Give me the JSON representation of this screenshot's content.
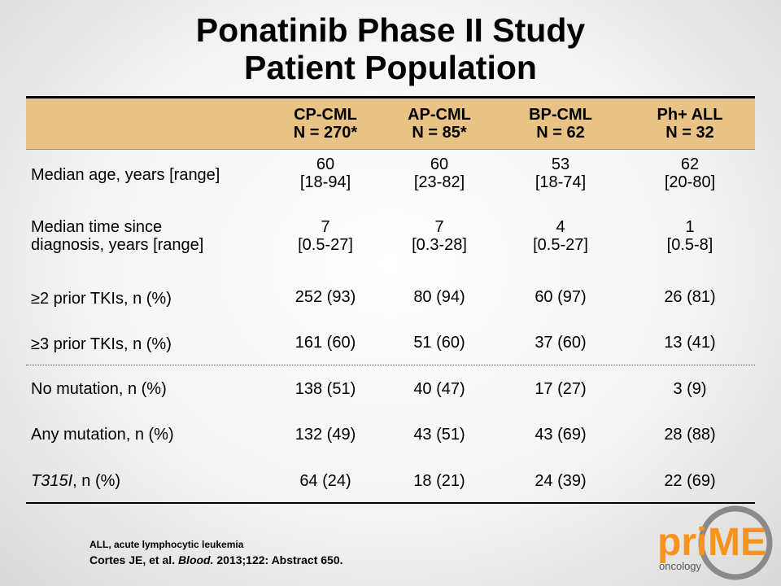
{
  "title": {
    "line1": "Ponatinib Phase II Study",
    "line2": "Patient  Population"
  },
  "columns": [
    {
      "name": "CP-CML",
      "n": "N = 270*"
    },
    {
      "name": "AP-CML",
      "n": "N = 85*"
    },
    {
      "name": "BP-CML",
      "n": "N = 62"
    },
    {
      "name": "Ph+ ALL",
      "n": "N = 32"
    }
  ],
  "rows": [
    {
      "label1": "Median age, years [range]",
      "label2": "",
      "values": [
        [
          "60",
          "[18-94]"
        ],
        [
          "60",
          "[23-82]"
        ],
        [
          "53",
          "[18-74]"
        ],
        [
          "62",
          "[20-80]"
        ]
      ]
    },
    {
      "label1": "Median time since",
      "label2": "diagnosis, years [range]",
      "values": [
        [
          "7",
          "[0.5-27]"
        ],
        [
          "7",
          "[0.3-28]"
        ],
        [
          "4",
          "[0.5-27]"
        ],
        [
          "1",
          "[0.5-8]"
        ]
      ]
    },
    {
      "label1": "≥2 prior TKIs, n (%)",
      "label2": "",
      "values": [
        [
          "252 (93)",
          ""
        ],
        [
          "80 (94)",
          ""
        ],
        [
          "60 (97)",
          ""
        ],
        [
          "26 (81)",
          ""
        ]
      ]
    },
    {
      "label1": "≥3 prior TKIs, n (%)",
      "label2": "",
      "values": [
        [
          "161 (60)",
          ""
        ],
        [
          "51 (60)",
          ""
        ],
        [
          "37 (60)",
          ""
        ],
        [
          "13 (41)",
          ""
        ]
      ]
    },
    {
      "label1": "No mutation, n (%)",
      "label2": "",
      "values": [
        [
          "138 (51)",
          ""
        ],
        [
          "40 (47)",
          ""
        ],
        [
          "17 (27)",
          ""
        ],
        [
          "3 (9)",
          ""
        ]
      ]
    },
    {
      "label1": "Any mutation, n (%)",
      "label2": "",
      "values": [
        [
          "132 (49)",
          ""
        ],
        [
          "43 (51)",
          ""
        ],
        [
          "43 (69)",
          ""
        ],
        [
          "28 (88)",
          ""
        ]
      ]
    },
    {
      "label1_italic": "T315I",
      "label1": ", n (%)",
      "label2": "",
      "values": [
        [
          "64 (24)",
          ""
        ],
        [
          "18 (21)",
          ""
        ],
        [
          "24 (39)",
          ""
        ],
        [
          "22 (69)",
          ""
        ]
      ]
    }
  ],
  "footnotes": {
    "abbrev": "ALL, acute lymphocytic leukemia",
    "cite_authors": "Cortes JE, et al. ",
    "cite_journal": "Blood.",
    "cite_rest": " 2013;122: Abstract 650."
  },
  "logo": {
    "text_pri": "pri",
    "text_me": "ME",
    "sub": "oncology",
    "accent": "#f7941d"
  }
}
